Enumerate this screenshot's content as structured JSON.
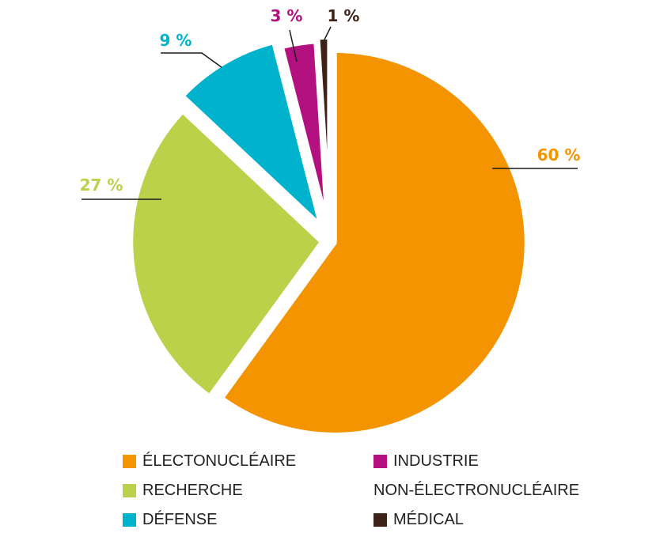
{
  "chart_data": {
    "type": "pie",
    "title": "",
    "slices": [
      {
        "label": "ÉLECTONUCLÉAIRE",
        "value": 60,
        "value_label": "60 %",
        "color": "#F39400"
      },
      {
        "label": "RECHERCHE",
        "value": 27,
        "value_label": "27 %",
        "color": "#BCD14A"
      },
      {
        "label": "DÉFENSE",
        "value": 9,
        "value_label": "9 %",
        "color": "#00B2CC"
      },
      {
        "label": "INDUSTRIE NON-ÉLECTRONUCLÉAIRE",
        "value": 3,
        "value_label": "3 %",
        "color": "#B3117F"
      },
      {
        "label": "MÉDICAL",
        "value": 1,
        "value_label": "1 %",
        "color": "#3E2418"
      }
    ],
    "exploded": true,
    "legend_position": "bottom"
  },
  "legend": {
    "electronucleaire": "ÉLECTONUCLÉAIRE",
    "recherche": "RECHERCHE",
    "defense": "DÉFENSE",
    "industrie_line1": "INDUSTRIE",
    "industrie_line2": "NON-ÉLECTRONUCLÉAIRE",
    "medical": "MÉDICAL"
  }
}
